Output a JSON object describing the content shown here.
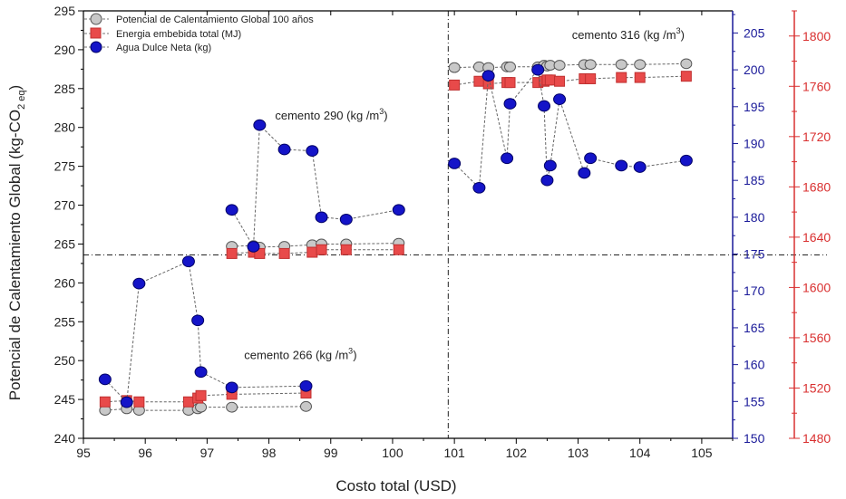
{
  "chart_data": {
    "type": "scatter",
    "xlabel": "Costo total (USD)",
    "ylabel": "Potencial de Calentamiento Global (kg-CO",
    "ylabel_sub": "2 eq",
    "ylabel_close": ")",
    "xlim": [
      95,
      105.5
    ],
    "xticks": [
      "95",
      "96",
      "97",
      "98",
      "99",
      "100",
      "101",
      "102",
      "103",
      "104",
      "105"
    ],
    "ylim_left": [
      240,
      295
    ],
    "yticks_left": [
      "240",
      "245",
      "250",
      "255",
      "260",
      "265",
      "270",
      "275",
      "280",
      "285",
      "290",
      "295"
    ],
    "ylim_right1": [
      150,
      208
    ],
    "yticks_right1": [
      "150",
      "155",
      "160",
      "165",
      "170",
      "175",
      "180",
      "185",
      "190",
      "195",
      "200",
      "205"
    ],
    "ylim_right2": [
      1480,
      1820
    ],
    "yticks_right2": [
      "1480",
      "1520",
      "1560",
      "1600",
      "1640",
      "1680",
      "1720",
      "1760",
      "1800"
    ],
    "reference_lines": {
      "x": 100.9,
      "y_left": 263.6
    },
    "legend_position": "top-left",
    "colors": {
      "pcg": "#c8c8c8",
      "energia": "#e84a4a",
      "agua": "#1414c8",
      "axis_right1": "#1a1a99",
      "axis_right2": "#d93030"
    },
    "annotations": [
      {
        "text": "cemento 266 (kg /m",
        "sup": "3",
        "close": ")",
        "x": 97.6,
        "y": 250.2
      },
      {
        "text": "cemento 290 (kg /m",
        "sup": "3",
        "close": ")",
        "x": 98.1,
        "y": 281.0
      },
      {
        "text": "cemento 316 (kg /m",
        "sup": "3",
        "close": ")",
        "x": 102.9,
        "y": 291.4
      }
    ],
    "series": [
      {
        "name": "Potencial de Calentamiento Global 100 años",
        "axis": "left",
        "marker": "circle",
        "x": [
          95.35,
          95.7,
          95.9,
          96.7,
          96.85,
          96.9,
          97.4,
          98.6,
          97.4,
          97.75,
          97.85,
          98.25,
          98.7,
          98.85,
          99.25,
          100.1,
          101.0,
          101.4,
          101.55,
          101.85,
          101.9,
          102.35,
          102.45,
          102.5,
          102.55,
          102.7,
          103.1,
          103.2,
          103.7,
          104.0,
          104.75
        ],
        "y": [
          243.6,
          243.8,
          243.6,
          243.6,
          243.8,
          244.0,
          244.0,
          244.1,
          264.7,
          264.8,
          264.6,
          264.7,
          264.9,
          265.0,
          265.0,
          265.1,
          287.7,
          287.8,
          287.7,
          287.8,
          287.8,
          287.8,
          288.0,
          287.9,
          288.0,
          288.0,
          288.1,
          288.1,
          288.1,
          288.1,
          288.2
        ]
      },
      {
        "name": "Energia embebida total (MJ)",
        "axis": "right2",
        "marker": "square",
        "x": [
          95.35,
          95.7,
          95.9,
          96.7,
          96.85,
          96.9,
          97.4,
          98.6,
          97.4,
          97.75,
          97.85,
          98.25,
          98.7,
          98.85,
          99.25,
          100.1,
          101.0,
          101.4,
          101.55,
          101.85,
          101.9,
          102.35,
          102.45,
          102.5,
          102.55,
          102.7,
          103.1,
          103.2,
          103.7,
          104.0,
          104.75
        ],
        "y": [
          1509,
          1510,
          1509,
          1509,
          1512,
          1514,
          1515,
          1516,
          1627,
          1628,
          1627,
          1627,
          1628,
          1630,
          1630,
          1630,
          1761,
          1764,
          1762,
          1763,
          1763,
          1763,
          1764,
          1765,
          1765,
          1764,
          1766,
          1766,
          1767,
          1767,
          1768
        ]
      },
      {
        "name": "Agua Dulce Neta (kg)",
        "axis": "right1",
        "marker": "circle",
        "x": [
          95.35,
          95.7,
          95.9,
          96.7,
          96.85,
          96.9,
          97.4,
          98.6,
          97.4,
          97.75,
          97.85,
          98.25,
          98.7,
          98.85,
          99.25,
          100.1,
          101.0,
          101.4,
          101.55,
          101.85,
          101.9,
          102.35,
          102.45,
          102.5,
          102.55,
          102.7,
          103.1,
          103.2,
          103.7,
          104.0,
          104.75
        ],
        "y": [
          158,
          154.9,
          171,
          174,
          166,
          159,
          156.9,
          157.1,
          181,
          176,
          192.5,
          189.2,
          189,
          180,
          179.7,
          181,
          187.3,
          184,
          199.2,
          188,
          195.4,
          200,
          195.1,
          185,
          187,
          196,
          186,
          188,
          187,
          186.8,
          187.7
        ]
      }
    ]
  }
}
